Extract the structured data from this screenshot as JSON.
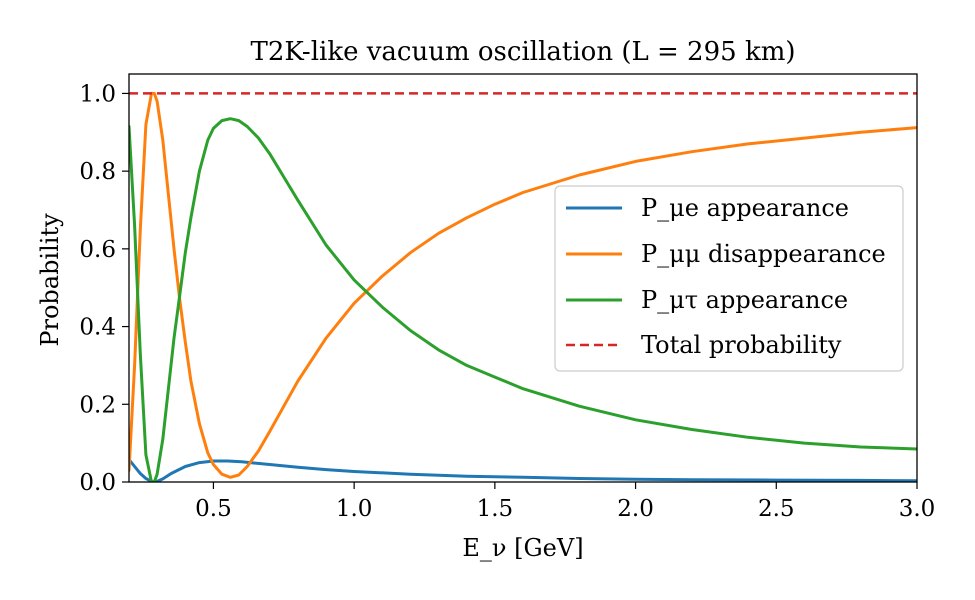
{
  "chart_data": {
    "type": "line",
    "title": "T2K-like vacuum oscillation (L = 295 km)",
    "xlabel": "E_ν [GeV]",
    "ylabel": "Probability",
    "xlim": [
      0.2,
      3.0
    ],
    "ylim": [
      0.0,
      1.05
    ],
    "xticks": [
      0.5,
      1.0,
      1.5,
      2.0,
      2.5,
      3.0
    ],
    "xtick_labels": [
      "0.5",
      "1.0",
      "1.5",
      "2.0",
      "2.5",
      "3.0"
    ],
    "yticks": [
      0.0,
      0.2,
      0.4,
      0.6,
      0.8,
      1.0
    ],
    "ytick_labels": [
      "0.0",
      "0.2",
      "0.4",
      "0.6",
      "0.8",
      "1.0"
    ],
    "grid": false,
    "legend_position": "center-right",
    "series": [
      {
        "name": "P_μe appearance",
        "color": "#1f77b4",
        "style": "solid",
        "x": [
          0.2,
          0.22,
          0.24,
          0.26,
          0.28,
          0.29,
          0.3,
          0.32,
          0.35,
          0.4,
          0.45,
          0.5,
          0.55,
          0.6,
          0.7,
          0.8,
          0.9,
          1.0,
          1.2,
          1.4,
          1.6,
          1.8,
          2.0,
          2.2,
          2.5,
          2.8,
          3.0
        ],
        "y": [
          0.058,
          0.04,
          0.022,
          0.009,
          0.0015,
          0.0,
          0.0015,
          0.008,
          0.022,
          0.04,
          0.05,
          0.054,
          0.054,
          0.052,
          0.045,
          0.038,
          0.032,
          0.027,
          0.02,
          0.015,
          0.012,
          0.009,
          0.007,
          0.006,
          0.005,
          0.004,
          0.003
        ]
      },
      {
        "name": "P_μμ disappearance",
        "color": "#ff7f0e",
        "style": "solid",
        "x": [
          0.2,
          0.22,
          0.24,
          0.26,
          0.28,
          0.29,
          0.3,
          0.32,
          0.34,
          0.36,
          0.38,
          0.4,
          0.42,
          0.45,
          0.48,
          0.5,
          0.53,
          0.56,
          0.59,
          0.62,
          0.66,
          0.7,
          0.75,
          0.8,
          0.9,
          1.0,
          1.1,
          1.2,
          1.3,
          1.4,
          1.5,
          1.6,
          1.8,
          2.0,
          2.2,
          2.4,
          2.6,
          2.8,
          3.0
        ],
        "y": [
          0.03,
          0.3,
          0.65,
          0.92,
          1.0,
          1.0,
          0.98,
          0.88,
          0.74,
          0.6,
          0.47,
          0.36,
          0.26,
          0.15,
          0.075,
          0.045,
          0.02,
          0.012,
          0.018,
          0.04,
          0.08,
          0.13,
          0.195,
          0.26,
          0.37,
          0.46,
          0.53,
          0.59,
          0.64,
          0.68,
          0.715,
          0.745,
          0.79,
          0.825,
          0.85,
          0.87,
          0.885,
          0.9,
          0.912
        ]
      },
      {
        "name": "P_μτ appearance",
        "color": "#2ca02c",
        "style": "solid",
        "x": [
          0.2,
          0.22,
          0.24,
          0.26,
          0.28,
          0.29,
          0.3,
          0.32,
          0.34,
          0.36,
          0.38,
          0.4,
          0.42,
          0.45,
          0.48,
          0.5,
          0.53,
          0.56,
          0.59,
          0.62,
          0.66,
          0.7,
          0.75,
          0.8,
          0.9,
          1.0,
          1.1,
          1.2,
          1.3,
          1.4,
          1.5,
          1.6,
          1.8,
          2.0,
          2.2,
          2.4,
          2.6,
          2.8,
          3.0
        ],
        "y": [
          0.915,
          0.66,
          0.33,
          0.07,
          0.0,
          0.0,
          0.02,
          0.11,
          0.24,
          0.37,
          0.48,
          0.59,
          0.68,
          0.8,
          0.88,
          0.91,
          0.93,
          0.935,
          0.93,
          0.915,
          0.885,
          0.845,
          0.785,
          0.725,
          0.61,
          0.52,
          0.45,
          0.39,
          0.34,
          0.3,
          0.27,
          0.24,
          0.195,
          0.16,
          0.135,
          0.115,
          0.1,
          0.09,
          0.085
        ]
      },
      {
        "name": "Total probability",
        "color": "#d62728",
        "style": "dashed",
        "x": [
          0.2,
          3.0
        ],
        "y": [
          1.0,
          1.0
        ]
      }
    ]
  }
}
